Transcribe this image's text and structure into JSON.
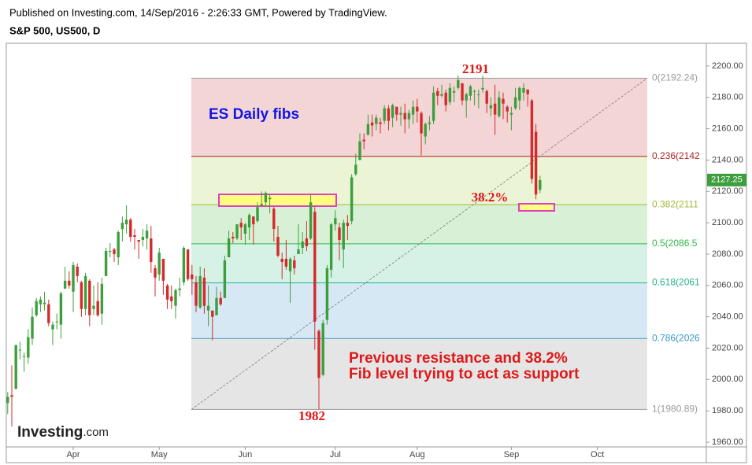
{
  "header": {
    "published": "Published on Investing.com, 14/Sep/2016 - 2:26:33 GMT, Powered by TradingView.",
    "symbol": "S&P 500, US500, D"
  },
  "chart_data": {
    "type": "candlestick",
    "categories": [
      null,
      null,
      null,
      null,
      null,
      null,
      null,
      null,
      null,
      null,
      null,
      null,
      null,
      null,
      null,
      null,
      "Apr",
      null,
      null,
      null,
      null,
      null,
      null,
      null,
      null,
      null,
      null,
      null,
      null,
      null,
      null,
      null,
      null,
      null,
      null,
      null,
      null,
      "May",
      null,
      null,
      null,
      null,
      null,
      null,
      null,
      null,
      null,
      null,
      null,
      null,
      null,
      null,
      null,
      null,
      null,
      null,
      null,
      null,
      "Jun",
      null,
      null,
      null,
      null,
      null,
      null,
      null,
      null,
      null,
      null,
      null,
      null,
      null,
      null,
      null,
      null,
      null,
      null,
      null,
      null,
      null,
      "Jul",
      null,
      null,
      null,
      null,
      null,
      null,
      null,
      null,
      null,
      null,
      null,
      null,
      null,
      null,
      null,
      null,
      null,
      null,
      null,
      "Aug",
      null,
      null,
      null,
      null,
      null,
      null,
      null,
      null,
      null,
      null,
      null,
      null,
      null,
      null,
      null,
      null,
      null,
      null,
      null,
      null,
      null,
      null,
      "Sep",
      null,
      null,
      null,
      null,
      null,
      null,
      null,
      null,
      null,
      null,
      null,
      null,
      null,
      null,
      null,
      null,
      null,
      null,
      null,
      null,
      "Oct"
    ],
    "open": [
      1985,
      1990,
      1994,
      2019,
      2015,
      2014,
      2026,
      2041,
      2048,
      2048,
      2048,
      2032,
      2037,
      2035,
      2058,
      2063,
      2056,
      2072,
      2062,
      2045,
      2063,
      2045,
      2050,
      2042,
      2066,
      2082,
      2083,
      2078,
      2096,
      2099,
      2102,
      2092,
      2089,
      2089,
      2090,
      2090,
      2071,
      2067,
      2077,
      2060,
      2053,
      2047,
      2057,
      2062,
      2083,
      2067,
      2062,
      2046,
      2065,
      2044,
      2044,
      2041,
      2052,
      2052,
      2078,
      2091,
      2090,
      2100,
      2093,
      2097,
      2104,
      2101,
      2111,
      2113,
      2115,
      2109,
      2091,
      2077,
      2077,
      2069,
      2076,
      2080,
      2084,
      2090,
      2090,
      2107,
      2031,
      2003,
      2038,
      2070,
      2099,
      2097,
      2083,
      2100,
      2101,
      2131,
      2140,
      2153,
      2156,
      2164,
      2163,
      2164,
      2165,
      2173,
      2167,
      2174,
      2169,
      2170,
      2166,
      2169,
      2174,
      2170,
      2155,
      2163,
      2165,
      2184,
      2181,
      2183,
      2177,
      2183,
      2186,
      2189,
      2178,
      2181,
      2184,
      2182,
      2185,
      2184,
      2173,
      2176,
      2168,
      2179,
      2174,
      2169,
      2173,
      2178,
      2183,
      2185,
      2178,
      2158,
      2121,
      null,
      null,
      null,
      null,
      null,
      null,
      null,
      null,
      null,
      null,
      null,
      null,
      null,
      null
    ],
    "high": [
      1992,
      2009,
      2022,
      2024,
      2017,
      2032,
      2046,
      2052,
      2053,
      2056,
      2051,
      2037,
      2042,
      2056,
      2072,
      2069,
      2075,
      2074,
      2063,
      2068,
      2064,
      2060,
      2062,
      2065,
      2084,
      2087,
      2084,
      2095,
      2104,
      2111,
      2103,
      2096,
      2089,
      2096,
      2099,
      2098,
      2073,
      2084,
      2077,
      2061,
      2060,
      2058,
      2065,
      2085,
      2083,
      2073,
      2066,
      2072,
      2071,
      2060,
      2044,
      2059,
      2056,
      2079,
      2095,
      2094,
      2099,
      2103,
      2100,
      2106,
      2104,
      2113,
      2120,
      2120,
      2118,
      2110,
      2098,
      2081,
      2089,
      2078,
      2079,
      2099,
      2094,
      2101,
      2118,
      2110,
      2032,
      2038,
      2073,
      2100,
      2108,
      2100,
      2102,
      2105,
      2131,
      2144,
      2157,
      2157,
      2169,
      2169,
      2169,
      2167,
      2175,
      2175,
      2176,
      2174,
      2174,
      2176,
      2172,
      2178,
      2179,
      2171,
      2164,
      2168,
      2187,
      2186,
      2188,
      2185,
      2189,
      2187,
      2194,
      2189,
      2183,
      2188,
      2185,
      2185,
      2194,
      2185,
      2180,
      2188,
      2184,
      2183,
      2175,
      2174,
      2186,
      2187,
      2189,
      2185,
      2179,
      2163,
      2130,
      null,
      null,
      null,
      null,
      null,
      null,
      null,
      null,
      null,
      null,
      null,
      null,
      null,
      null
    ],
    "low": [
      1978,
      1970,
      1994,
      2013,
      2005,
      2010,
      2022,
      2040,
      2043,
      2044,
      2034,
      2022,
      2032,
      2026,
      2058,
      2058,
      2043,
      2062,
      2040,
      2041,
      2034,
      2041,
      2040,
      2035,
      2066,
      2078,
      2075,
      2073,
      2088,
      2093,
      2088,
      2083,
      2077,
      2085,
      2083,
      2068,
      2053,
      2063,
      2054,
      2045,
      2045,
      2039,
      2053,
      2060,
      2063,
      2054,
      2043,
      2045,
      2042,
      2034,
      2025,
      2041,
      2047,
      2052,
      2078,
      2087,
      2089,
      2089,
      2086,
      2089,
      2086,
      2100,
      2110,
      2110,
      2106,
      2088,
      2078,
      2064,
      2070,
      2049,
      2067,
      2080,
      2080,
      2082,
      2089,
      2019,
      1981,
      2002,
      2035,
      2065,
      2095,
      2076,
      2071,
      2089,
      2099,
      2130,
      2140,
      2147,
      2156,
      2155,
      2159,
      2157,
      2163,
      2159,
      2161,
      2165,
      2162,
      2157,
      2160,
      2163,
      2164,
      2143,
      2150,
      2159,
      2163,
      2175,
      2180,
      2171,
      2175,
      2177,
      2185,
      2175,
      2167,
      2178,
      2175,
      2173,
      2183,
      2170,
      2168,
      2156,
      2167,
      2166,
      2164,
      2159,
      2172,
      2172,
      2178,
      2174,
      2125,
      2115,
      2119,
      null,
      null,
      null,
      null,
      null,
      null,
      null,
      null,
      null,
      null,
      null,
      null,
      null,
      null
    ],
    "close": [
      1989,
      1989,
      2022,
      2019,
      2015,
      2027,
      2040,
      2050,
      2051,
      2049,
      2036,
      2035,
      2037,
      2055,
      2063,
      2060,
      2073,
      2066,
      2045,
      2066,
      2041,
      2047,
      2041,
      2061,
      2082,
      2082,
      2080,
      2094,
      2100,
      2102,
      2091,
      2091,
      2088,
      2091,
      2095,
      2075,
      2065,
      2081,
      2063,
      2051,
      2050,
      2057,
      2058,
      2084,
      2064,
      2064,
      2047,
      2066,
      2047,
      2047,
      2040,
      2052,
      2048,
      2076,
      2090,
      2090,
      2099,
      2097,
      2099,
      2105,
      2099,
      2110,
      2112,
      2119,
      2116,
      2096,
      2079,
      2075,
      2072,
      2077,
      2071,
      2083,
      2088,
      2085,
      2113,
      2037,
      2001,
      2036,
      2071,
      2099,
      2103,
      2089,
      2100,
      2098,
      2129,
      2137,
      2152,
      2152,
      2163,
      2162,
      2167,
      2163,
      2173,
      2165,
      2175,
      2169,
      2170,
      2166,
      2170,
      2174,
      2171,
      2157,
      2163,
      2164,
      2183,
      2181,
      2182,
      2175,
      2186,
      2184,
      2191,
      2178,
      2182,
      2187,
      2184,
      2182,
      2186,
      2176,
      2175,
      2169,
      2180,
      2176,
      2171,
      2170,
      2180,
      2186,
      2186,
      2182,
      2128,
      2118,
      2127.25,
      null,
      null,
      null,
      null,
      null,
      null,
      null,
      null,
      null,
      null,
      null,
      null,
      null,
      null
    ],
    "up_color": "#3c9e3c",
    "down_color": "#d42a2a",
    "ylim": [
      1957,
      2214.5
    ],
    "yticks": [
      {
        "value": 1960,
        "label": "1960.00"
      },
      {
        "value": 1980,
        "label": "1980.00"
      },
      {
        "value": 2000,
        "label": "2000.00"
      },
      {
        "value": 2020,
        "label": "2020.00"
      },
      {
        "value": 2040,
        "label": "2040.00"
      },
      {
        "value": 2060,
        "label": "2060.00"
      },
      {
        "value": 2080,
        "label": "2080.00"
      },
      {
        "value": 2100,
        "label": "2100.00"
      },
      {
        "value": 2120,
        "label": "2120.00"
      },
      {
        "value": 2140,
        "label": "2140.00"
      },
      {
        "value": 2160,
        "label": "2160.00"
      },
      {
        "value": 2180,
        "label": "2180.00"
      },
      {
        "value": 2200,
        "label": "2200.00"
      }
    ],
    "grid": false,
    "fib_levels": [
      {
        "value": 2192.24,
        "label": "0(2192.24)",
        "color": "#9a9a9a"
      },
      {
        "value": 2142.36,
        "label": "0.236(2142",
        "color": "#b22222"
      },
      {
        "value": 2111.51,
        "label": "0.382(2111",
        "color": "#9abb33"
      },
      {
        "value": 2086.57,
        "label": "0.5(2086.5",
        "color": "#33b84a"
      },
      {
        "value": 2061.63,
        "label": "0.618(2061",
        "color": "#22b38a"
      },
      {
        "value": 2026.12,
        "label": "0.786(2026",
        "color": "#3a96c8"
      },
      {
        "value": 1980.89,
        "label": "1(1980.89)",
        "color": "#9a9a9a"
      }
    ],
    "fib_band_colors": [
      "#f3d5d5",
      "#ecf4d6",
      "#d8f1d6",
      "#d6f2e6",
      "#d6e8f3",
      "#e5e5e5"
    ],
    "annotations": [
      {
        "text": "ES Daily fibs",
        "color": "#1414e6"
      },
      {
        "text": "2191",
        "color": "#e01818"
      },
      {
        "text": "1982",
        "color": "#e01818"
      },
      {
        "text": "38.2%",
        "color": "#e01818"
      },
      {
        "text": "Previous resistance and 38.2%",
        "color": "#e01818"
      },
      {
        "text": "Fib level trying to act as support",
        "color": "#e01818"
      }
    ],
    "logo_brand": "Investing",
    "logo_domain": ".com"
  }
}
